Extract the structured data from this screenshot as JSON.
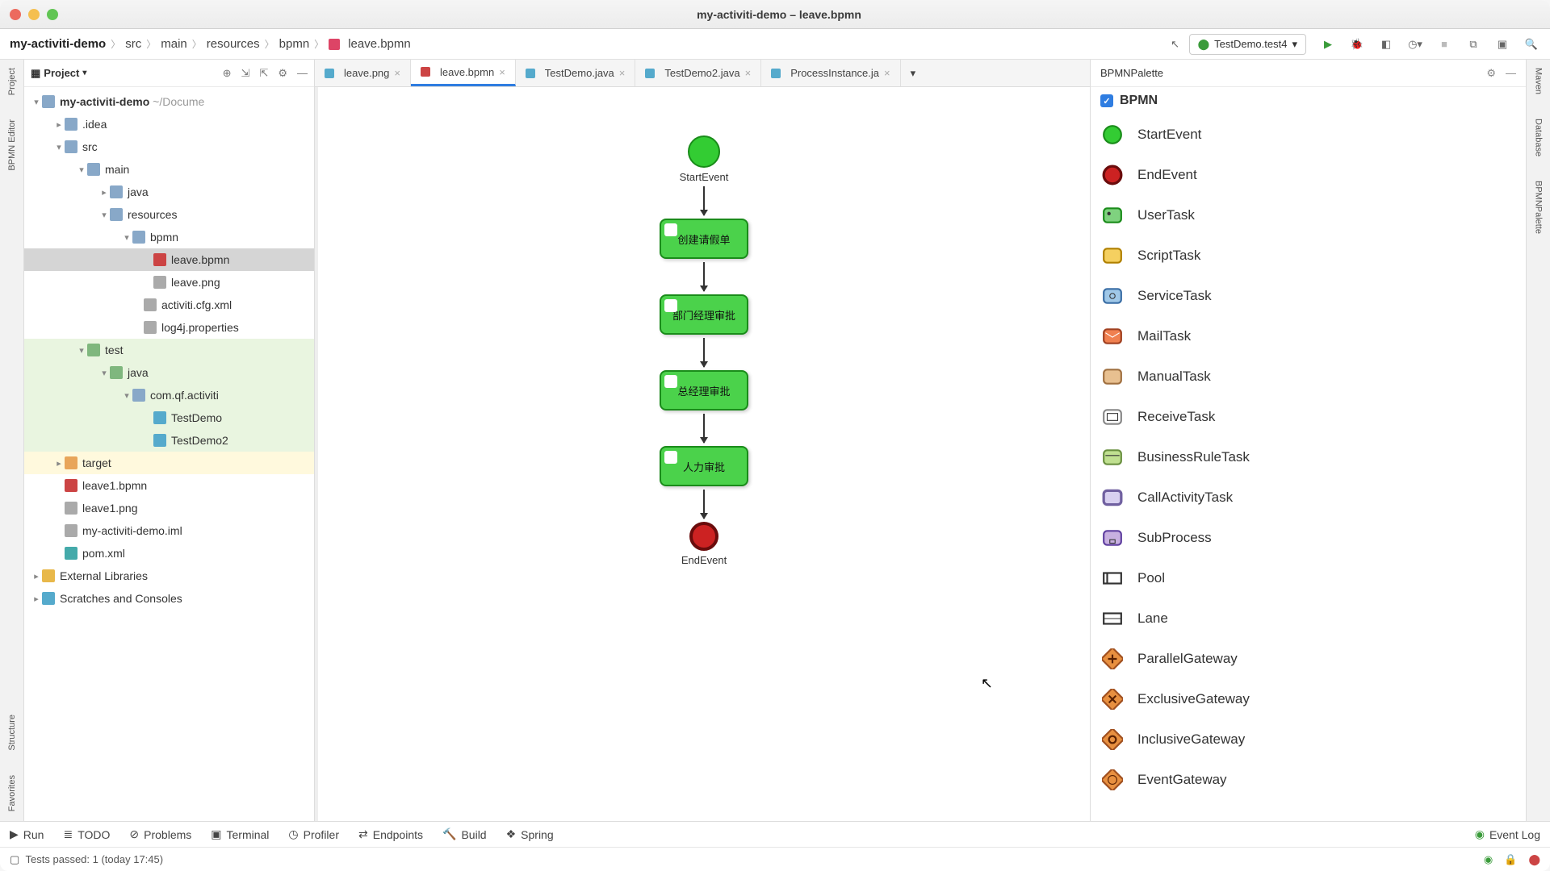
{
  "window": {
    "title": "my-activiti-demo – leave.bpmn"
  },
  "breadcrumb": [
    "my-activiti-demo",
    "src",
    "main",
    "resources",
    "bpmn",
    "leave.bpmn"
  ],
  "run_config": "TestDemo.test4",
  "project_panel": {
    "title": "Project"
  },
  "tree": {
    "root": "my-activiti-demo",
    "root_path": "~/Docume",
    "idea": ".idea",
    "src": "src",
    "main": "main",
    "java1": "java",
    "resources": "resources",
    "bpmn_dir": "bpmn",
    "leave_bpmn": "leave.bpmn",
    "leave_png": "leave.png",
    "cfg": "activiti.cfg.xml",
    "log4j": "log4j.properties",
    "test": "test",
    "java2": "java",
    "pkg": "com.qf.activiti",
    "td1": "TestDemo",
    "td2": "TestDemo2",
    "target": "target",
    "lb1": "leave1.bpmn",
    "lp1": "leave1.png",
    "iml": "my-activiti-demo.iml",
    "pom": "pom.xml",
    "ext": "External Libraries",
    "scratch": "Scratches and Consoles"
  },
  "tabs": [
    {
      "label": "leave.png",
      "active": false
    },
    {
      "label": "leave.bpmn",
      "active": true
    },
    {
      "label": "TestDemo.java",
      "active": false
    },
    {
      "label": "TestDemo2.java",
      "active": false
    },
    {
      "label": "ProcessInstance.ja",
      "active": false
    }
  ],
  "diagram": {
    "start_label": "StartEvent",
    "tasks": [
      "创建请假单",
      "部门经理审批",
      "总经理审批",
      "人力审批"
    ],
    "end_label": "EndEvent",
    "colors": {
      "task_bg": "#4bd24b",
      "task_border": "#1a8c1a",
      "start_bg": "#33cc33",
      "end_bg": "#cc2222"
    }
  },
  "palette": {
    "title": "BPMNPalette",
    "group": "BPMN",
    "items": [
      "StartEvent",
      "EndEvent",
      "UserTask",
      "ScriptTask",
      "ServiceTask",
      "MailTask",
      "ManualTask",
      "ReceiveTask",
      "BusinessRuleTask",
      "CallActivityTask",
      "SubProcess",
      "Pool",
      "Lane",
      "ParallelGateway",
      "ExclusiveGateway",
      "InclusiveGateway",
      "EventGateway"
    ]
  },
  "left_rail": [
    "Project",
    "BPMN Editor",
    "Structure",
    "Favorites"
  ],
  "right_rail": [
    "Maven",
    "Database",
    "BPMNPalette"
  ],
  "bottom_tabs": [
    "Run",
    "TODO",
    "Problems",
    "Terminal",
    "Profiler",
    "Endpoints",
    "Build",
    "Spring"
  ],
  "event_log": "Event Log",
  "status_msg": "Tests passed: 1 (today 17:45)"
}
